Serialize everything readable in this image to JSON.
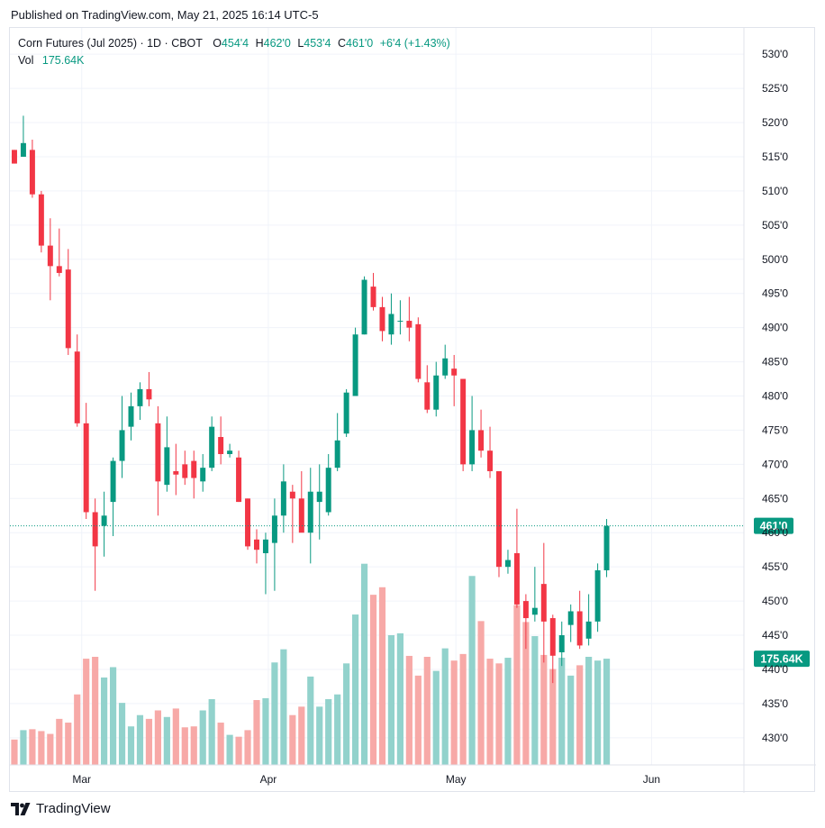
{
  "published": "Published on TradingView.com, May 21, 2025 16:14 UTC-5",
  "brand": {
    "name": "TradingView",
    "icon": "tradingview-logo-icon"
  },
  "legend": {
    "symbol": "Corn Futures (Jul 2025) · 1D · CBOT",
    "open_label": "O",
    "open": "454'4",
    "high_label": "H",
    "high": "462'0",
    "low_label": "L",
    "low": "453'4",
    "close_label": "C",
    "close": "461'0",
    "change": "+6'4 (+1.43%)",
    "vol_label": "Vol",
    "vol": "175.64K"
  },
  "colors": {
    "up": "#089981",
    "down": "#f23645",
    "vol_up": "#92d2cc",
    "vol_down": "#f7a9a7",
    "grid": "#f0f3fa",
    "axis_text": "#131722"
  },
  "chart_data": {
    "type": "candlestick",
    "y_ticks": [
      "430'0",
      "435'0",
      "440'0",
      "445'0",
      "450'0",
      "455'0",
      "460'0",
      "465'0",
      "470'0",
      "475'0",
      "480'0",
      "485'0",
      "490'0",
      "495'0",
      "500'0",
      "505'0",
      "510'0",
      "515'0",
      "520'0",
      "525'0",
      "530'0"
    ],
    "y_tick_values": [
      430,
      435,
      440,
      445,
      450,
      455,
      460,
      465,
      470,
      475,
      480,
      485,
      490,
      495,
      500,
      505,
      510,
      515,
      520,
      525,
      530
    ],
    "ylim": [
      428,
      532
    ],
    "x_labels": [
      {
        "label": "Mar",
        "index": 7.5
      },
      {
        "label": "Apr",
        "index": 28.3
      },
      {
        "label": "May",
        "index": 49.2
      },
      {
        "label": "Jun",
        "index": 71
      }
    ],
    "x_range": [
      -0.5,
      81.3
    ],
    "last_price_label": "461'0",
    "last_price": 461,
    "volume_label": "175.64K",
    "volume_max": 230,
    "candles": [
      {
        "o": 516,
        "h": 516,
        "l": 514,
        "c": 514,
        "v": 27
      },
      {
        "o": 515,
        "h": 521,
        "l": 515,
        "c": 517,
        "v": 37
      },
      {
        "o": 516,
        "h": 517.5,
        "l": 509,
        "c": 509.5,
        "v": 38
      },
      {
        "o": 509.5,
        "h": 510,
        "l": 501,
        "c": 502,
        "v": 36
      },
      {
        "o": 502,
        "h": 506,
        "l": 494,
        "c": 499,
        "v": 33
      },
      {
        "o": 499,
        "h": 504.5,
        "l": 497.5,
        "c": 498,
        "v": 49
      },
      {
        "o": 498.5,
        "h": 501.5,
        "l": 486,
        "c": 487,
        "v": 45
      },
      {
        "o": 486.5,
        "h": 489,
        "l": 475.5,
        "c": 476,
        "v": 75
      },
      {
        "o": 476,
        "h": 479,
        "l": 462,
        "c": 463,
        "v": 113
      },
      {
        "o": 463,
        "h": 465,
        "l": 451.5,
        "c": 458,
        "v": 115
      },
      {
        "o": 461,
        "h": 466,
        "l": 456.5,
        "c": 462.5,
        "v": 93
      },
      {
        "o": 464.5,
        "h": 471,
        "l": 459.5,
        "c": 470.5,
        "v": 104
      },
      {
        "o": 470.5,
        "h": 480,
        "l": 468,
        "c": 475,
        "v": 66
      },
      {
        "o": 475.5,
        "h": 480.5,
        "l": 473.5,
        "c": 478.5,
        "v": 41
      },
      {
        "o": 478.5,
        "h": 482,
        "l": 476.5,
        "c": 481,
        "v": 53
      },
      {
        "o": 481,
        "h": 483.5,
        "l": 478.5,
        "c": 479.5,
        "v": 49
      },
      {
        "o": 476,
        "h": 478.5,
        "l": 462.5,
        "c": 467.5,
        "v": 58
      },
      {
        "o": 467,
        "h": 477,
        "l": 466,
        "c": 472.5,
        "v": 51
      },
      {
        "o": 469,
        "h": 473,
        "l": 465.5,
        "c": 468.5,
        "v": 60
      },
      {
        "o": 470,
        "h": 472,
        "l": 467,
        "c": 468,
        "v": 40
      },
      {
        "o": 470.5,
        "h": 472,
        "l": 465,
        "c": 468,
        "v": 41
      },
      {
        "o": 467.5,
        "h": 471.5,
        "l": 466,
        "c": 469.5,
        "v": 58
      },
      {
        "o": 469.5,
        "h": 477,
        "l": 469,
        "c": 475.5,
        "v": 70
      },
      {
        "o": 474,
        "h": 477,
        "l": 470,
        "c": 471.5,
        "v": 45
      },
      {
        "o": 471.5,
        "h": 473,
        "l": 471,
        "c": 472,
        "v": 32
      },
      {
        "o": 471,
        "h": 472,
        "l": 464.5,
        "c": 464.5,
        "v": 30
      },
      {
        "o": 465,
        "h": 465,
        "l": 457.5,
        "c": 458,
        "v": 37
      },
      {
        "o": 459,
        "h": 460.5,
        "l": 455.5,
        "c": 457.5,
        "v": 69
      },
      {
        "o": 457,
        "h": 460,
        "l": 451,
        "c": 459,
        "v": 71
      },
      {
        "o": 458.5,
        "h": 465,
        "l": 451.5,
        "c": 462.5,
        "v": 109
      },
      {
        "o": 462.5,
        "h": 470,
        "l": 460,
        "c": 467.5,
        "v": 123
      },
      {
        "o": 466,
        "h": 467,
        "l": 458.5,
        "c": 465,
        "v": 53
      },
      {
        "o": 465,
        "h": 469,
        "l": 461,
        "c": 460,
        "v": 62
      },
      {
        "o": 460,
        "h": 469.5,
        "l": 455.5,
        "c": 466,
        "v": 94
      },
      {
        "o": 464.5,
        "h": 470,
        "l": 459,
        "c": 466,
        "v": 62
      },
      {
        "o": 463,
        "h": 471.5,
        "l": 462.5,
        "c": 469.5,
        "v": 70
      },
      {
        "o": 469.5,
        "h": 477.5,
        "l": 469,
        "c": 473.5,
        "v": 75
      },
      {
        "o": 474.5,
        "h": 481,
        "l": 474,
        "c": 480.5,
        "v": 108
      },
      {
        "o": 480,
        "h": 490,
        "l": 480,
        "c": 489,
        "v": 160
      },
      {
        "o": 489,
        "h": 497.5,
        "l": 489,
        "c": 497,
        "v": 214
      },
      {
        "o": 496,
        "h": 498,
        "l": 492.5,
        "c": 493,
        "v": 181
      },
      {
        "o": 493,
        "h": 494.5,
        "l": 488,
        "c": 489.5,
        "v": 189
      },
      {
        "o": 489,
        "h": 495,
        "l": 487.5,
        "c": 492,
        "v": 138
      },
      {
        "o": 491,
        "h": 494,
        "l": 489,
        "c": 491,
        "v": 140
      },
      {
        "o": 491,
        "h": 494.5,
        "l": 488,
        "c": 490,
        "v": 116
      },
      {
        "o": 490.5,
        "h": 491.5,
        "l": 482,
        "c": 482.5,
        "v": 95
      },
      {
        "o": 482,
        "h": 484.5,
        "l": 477.5,
        "c": 478,
        "v": 115
      },
      {
        "o": 478,
        "h": 485,
        "l": 477,
        "c": 483,
        "v": 100
      },
      {
        "o": 483,
        "h": 487.5,
        "l": 482.5,
        "c": 485.5,
        "v": 124
      },
      {
        "o": 484,
        "h": 486,
        "l": 478.5,
        "c": 483,
        "v": 111
      },
      {
        "o": 482.5,
        "h": 482.5,
        "l": 469,
        "c": 470,
        "v": 118
      },
      {
        "o": 470,
        "h": 480,
        "l": 469,
        "c": 475,
        "v": 201
      },
      {
        "o": 475,
        "h": 478,
        "l": 471,
        "c": 472,
        "v": 153
      },
      {
        "o": 472,
        "h": 475.5,
        "l": 468,
        "c": 469,
        "v": 113
      },
      {
        "o": 469,
        "h": 469,
        "l": 453.5,
        "c": 455,
        "v": 108
      },
      {
        "o": 455,
        "h": 457.5,
        "l": 454,
        "c": 456,
        "v": 114
      },
      {
        "o": 457,
        "h": 463.5,
        "l": 449,
        "c": 449.5,
        "v": 170
      },
      {
        "o": 450,
        "h": 451,
        "l": 443,
        "c": 447.5,
        "v": 152
      },
      {
        "o": 448,
        "h": 455,
        "l": 447,
        "c": 449,
        "v": 137
      },
      {
        "o": 452.5,
        "h": 458.5,
        "l": 441,
        "c": 447,
        "v": 117
      },
      {
        "o": 447.5,
        "h": 448,
        "l": 438,
        "c": 442,
        "v": 102
      },
      {
        "o": 442.5,
        "h": 447,
        "l": 440.5,
        "c": 445,
        "v": 114
      },
      {
        "o": 446.5,
        "h": 449.5,
        "l": 444,
        "c": 448.5,
        "v": 95
      },
      {
        "o": 448.5,
        "h": 451.5,
        "l": 443,
        "c": 443.5,
        "v": 106
      },
      {
        "o": 444.5,
        "h": 451,
        "l": 443.5,
        "c": 447,
        "v": 115
      },
      {
        "o": 447,
        "h": 455.5,
        "l": 445.5,
        "c": 454.5,
        "v": 111
      },
      {
        "o": 454.5,
        "h": 462,
        "l": 453.5,
        "c": 461,
        "v": 113
      }
    ]
  }
}
